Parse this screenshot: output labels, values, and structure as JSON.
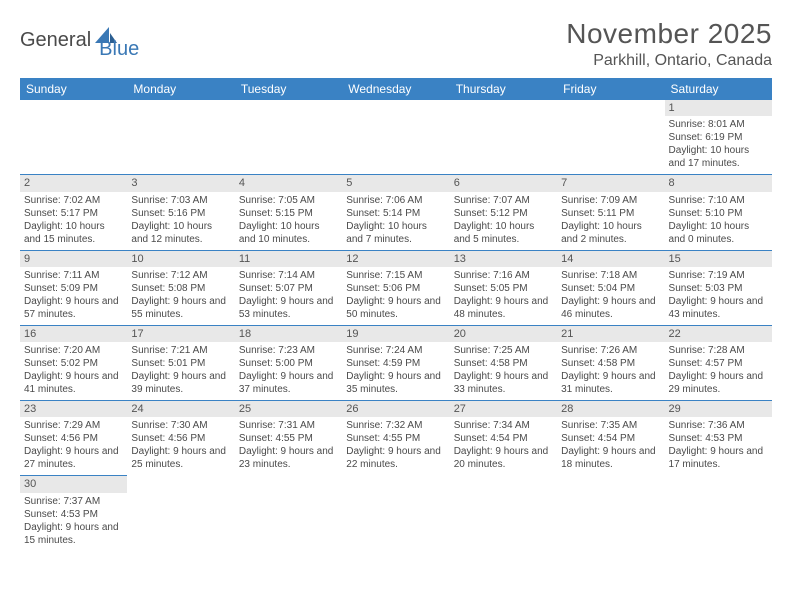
{
  "logo": {
    "part1": "General",
    "part2": "Blue"
  },
  "title": "November 2025",
  "location": "Parkhill, Ontario, Canada",
  "colors": {
    "header_bg": "#3a82c4",
    "header_text": "#ffffff",
    "daynum_bg": "#e8e8e8",
    "border": "#3a82c4",
    "text": "#4a4a4a"
  },
  "day_headers": [
    "Sunday",
    "Monday",
    "Tuesday",
    "Wednesday",
    "Thursday",
    "Friday",
    "Saturday"
  ],
  "weeks": [
    [
      null,
      null,
      null,
      null,
      null,
      null,
      {
        "n": "1",
        "sr": "8:01 AM",
        "ss": "6:19 PM",
        "dl": "10 hours and 17 minutes."
      }
    ],
    [
      {
        "n": "2",
        "sr": "7:02 AM",
        "ss": "5:17 PM",
        "dl": "10 hours and 15 minutes."
      },
      {
        "n": "3",
        "sr": "7:03 AM",
        "ss": "5:16 PM",
        "dl": "10 hours and 12 minutes."
      },
      {
        "n": "4",
        "sr": "7:05 AM",
        "ss": "5:15 PM",
        "dl": "10 hours and 10 minutes."
      },
      {
        "n": "5",
        "sr": "7:06 AM",
        "ss": "5:14 PM",
        "dl": "10 hours and 7 minutes."
      },
      {
        "n": "6",
        "sr": "7:07 AM",
        "ss": "5:12 PM",
        "dl": "10 hours and 5 minutes."
      },
      {
        "n": "7",
        "sr": "7:09 AM",
        "ss": "5:11 PM",
        "dl": "10 hours and 2 minutes."
      },
      {
        "n": "8",
        "sr": "7:10 AM",
        "ss": "5:10 PM",
        "dl": "10 hours and 0 minutes."
      }
    ],
    [
      {
        "n": "9",
        "sr": "7:11 AM",
        "ss": "5:09 PM",
        "dl": "9 hours and 57 minutes."
      },
      {
        "n": "10",
        "sr": "7:12 AM",
        "ss": "5:08 PM",
        "dl": "9 hours and 55 minutes."
      },
      {
        "n": "11",
        "sr": "7:14 AM",
        "ss": "5:07 PM",
        "dl": "9 hours and 53 minutes."
      },
      {
        "n": "12",
        "sr": "7:15 AM",
        "ss": "5:06 PM",
        "dl": "9 hours and 50 minutes."
      },
      {
        "n": "13",
        "sr": "7:16 AM",
        "ss": "5:05 PM",
        "dl": "9 hours and 48 minutes."
      },
      {
        "n": "14",
        "sr": "7:18 AM",
        "ss": "5:04 PM",
        "dl": "9 hours and 46 minutes."
      },
      {
        "n": "15",
        "sr": "7:19 AM",
        "ss": "5:03 PM",
        "dl": "9 hours and 43 minutes."
      }
    ],
    [
      {
        "n": "16",
        "sr": "7:20 AM",
        "ss": "5:02 PM",
        "dl": "9 hours and 41 minutes."
      },
      {
        "n": "17",
        "sr": "7:21 AM",
        "ss": "5:01 PM",
        "dl": "9 hours and 39 minutes."
      },
      {
        "n": "18",
        "sr": "7:23 AM",
        "ss": "5:00 PM",
        "dl": "9 hours and 37 minutes."
      },
      {
        "n": "19",
        "sr": "7:24 AM",
        "ss": "4:59 PM",
        "dl": "9 hours and 35 minutes."
      },
      {
        "n": "20",
        "sr": "7:25 AM",
        "ss": "4:58 PM",
        "dl": "9 hours and 33 minutes."
      },
      {
        "n": "21",
        "sr": "7:26 AM",
        "ss": "4:58 PM",
        "dl": "9 hours and 31 minutes."
      },
      {
        "n": "22",
        "sr": "7:28 AM",
        "ss": "4:57 PM",
        "dl": "9 hours and 29 minutes."
      }
    ],
    [
      {
        "n": "23",
        "sr": "7:29 AM",
        "ss": "4:56 PM",
        "dl": "9 hours and 27 minutes."
      },
      {
        "n": "24",
        "sr": "7:30 AM",
        "ss": "4:56 PM",
        "dl": "9 hours and 25 minutes."
      },
      {
        "n": "25",
        "sr": "7:31 AM",
        "ss": "4:55 PM",
        "dl": "9 hours and 23 minutes."
      },
      {
        "n": "26",
        "sr": "7:32 AM",
        "ss": "4:55 PM",
        "dl": "9 hours and 22 minutes."
      },
      {
        "n": "27",
        "sr": "7:34 AM",
        "ss": "4:54 PM",
        "dl": "9 hours and 20 minutes."
      },
      {
        "n": "28",
        "sr": "7:35 AM",
        "ss": "4:54 PM",
        "dl": "9 hours and 18 minutes."
      },
      {
        "n": "29",
        "sr": "7:36 AM",
        "ss": "4:53 PM",
        "dl": "9 hours and 17 minutes."
      }
    ],
    [
      {
        "n": "30",
        "sr": "7:37 AM",
        "ss": "4:53 PM",
        "dl": "9 hours and 15 minutes."
      },
      null,
      null,
      null,
      null,
      null,
      null
    ]
  ],
  "labels": {
    "sunrise": "Sunrise: ",
    "sunset": "Sunset: ",
    "daylight": "Daylight: "
  }
}
